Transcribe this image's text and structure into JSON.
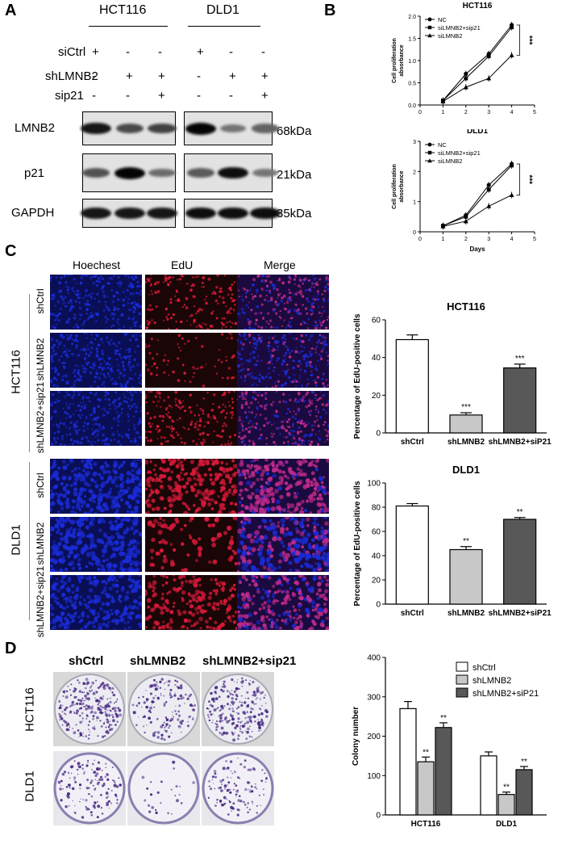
{
  "panels": {
    "A": "A",
    "B": "B",
    "C": "C",
    "D": "D"
  },
  "panel_a": {
    "cell_lines": [
      "HCT116",
      "DLD1"
    ],
    "row_labels": [
      "siCtrl",
      "shLMNB2",
      "sip21"
    ],
    "signs": {
      "siCtrl": [
        "+",
        "-",
        "-",
        "+",
        "-",
        "-"
      ],
      "shLMNB2": [
        "-",
        "+",
        "+",
        "-",
        "+",
        "+"
      ],
      "sip21": [
        "-",
        "-",
        "+",
        "-",
        "-",
        "+"
      ]
    },
    "blots": [
      {
        "protein": "LMNB2",
        "size": "68kDa",
        "intensity": [
          0.9,
          0.6,
          0.65,
          1.0,
          0.35,
          0.45
        ]
      },
      {
        "protein": "p21",
        "size": "21kDa",
        "intensity": [
          0.55,
          1.0,
          0.4,
          0.5,
          0.95,
          0.35
        ]
      },
      {
        "protein": "GAPDH",
        "size": "35kDa",
        "intensity": [
          0.9,
          0.9,
          0.9,
          0.95,
          0.95,
          0.95
        ]
      }
    ]
  },
  "panel_c": {
    "columns": [
      "Hoechest",
      "EdU",
      "Merge"
    ],
    "groups": [
      "HCT116",
      "DLD1"
    ],
    "rows": [
      "shCtrl",
      "shLMNB2",
      "shLMNB2+sip21",
      "shCtrl",
      "shLMNB2",
      "shLMNB2+sip21"
    ]
  },
  "panel_d": {
    "columns": [
      "shCtrl",
      "shLMNB2",
      "shLMNB2+sip21"
    ],
    "rows": [
      "HCT116",
      "DLD1"
    ]
  },
  "colors": {
    "hoechst": "#1a2bd6",
    "edu": "#d8193a",
    "merge": "#c02a8a",
    "crystal_violet": "#4b2a85",
    "bar_white": "#ffffff",
    "bar_light": "#c8c8c8",
    "bar_dark": "#585858"
  },
  "chart_data": [
    {
      "type": "line",
      "title": "HCT116",
      "xlabel": "",
      "ylabel": "Cell proliferation absorbance",
      "xlim": [
        0,
        5
      ],
      "ylim": [
        0,
        2.0
      ],
      "xticks": [
        0,
        1,
        2,
        3,
        4,
        5
      ],
      "yticks": [
        "0.0",
        "0.5",
        "1.0",
        "1.5",
        "2.0"
      ],
      "x": [
        1,
        2,
        3,
        4
      ],
      "series": [
        {
          "name": "NC",
          "marker": "circle",
          "values": [
            0.1,
            0.7,
            1.15,
            1.8
          ]
        },
        {
          "name": "siLMNB2+sip21",
          "marker": "square",
          "values": [
            0.1,
            0.6,
            1.1,
            1.75
          ]
        },
        {
          "name": "siLMNB2",
          "marker": "triangle",
          "values": [
            0.08,
            0.4,
            0.6,
            1.12
          ]
        }
      ],
      "annotation": "***",
      "legend": "top-left"
    },
    {
      "type": "line",
      "title": "DLD1",
      "xlabel": "Days",
      "ylabel": "Cell proliferation absorbance",
      "xlim": [
        0,
        5
      ],
      "ylim": [
        0,
        3
      ],
      "xticks": [
        0,
        1,
        2,
        3,
        4,
        5
      ],
      "yticks": [
        "0",
        "1",
        "2",
        "3"
      ],
      "x": [
        1,
        2,
        3,
        4
      ],
      "series": [
        {
          "name": "NC",
          "marker": "circle",
          "values": [
            0.2,
            0.55,
            1.55,
            2.25
          ]
        },
        {
          "name": "siLMNB2+sip21",
          "marker": "square",
          "values": [
            0.2,
            0.5,
            1.4,
            2.2
          ]
        },
        {
          "name": "siLMNB2",
          "marker": "triangle",
          "values": [
            0.18,
            0.35,
            0.85,
            1.22
          ]
        }
      ],
      "annotation": "***",
      "legend": "top-left"
    },
    {
      "type": "bar",
      "title": "HCT116",
      "xlabel": "",
      "ylabel": "Percentage of EdU-positive cells",
      "ylim": [
        0,
        60
      ],
      "yticks": [
        "0",
        "20",
        "40",
        "60"
      ],
      "categories": [
        "shCtrl",
        "shLMNB2",
        "shLMNB2+siP21"
      ],
      "values": [
        49.5,
        9.5,
        34.5
      ],
      "errors": [
        2.5,
        1.2,
        2.0
      ],
      "significance": [
        "",
        "***",
        "***"
      ]
    },
    {
      "type": "bar",
      "title": "DLD1",
      "xlabel": "",
      "ylabel": "Percentage of EdU-positive cells",
      "ylim": [
        0,
        100
      ],
      "yticks": [
        "0",
        "20",
        "40",
        "60",
        "80",
        "100"
      ],
      "categories": [
        "shCtrl",
        "shLMNB2",
        "shLMNB2+siP21"
      ],
      "values": [
        81,
        45,
        70
      ],
      "errors": [
        2,
        2.5,
        1.5
      ],
      "significance": [
        "",
        "**",
        "**"
      ]
    },
    {
      "type": "bar",
      "title": "",
      "xlabel": "",
      "ylabel": "Colony number",
      "ylim": [
        0,
        400
      ],
      "yticks": [
        "0",
        "100",
        "200",
        "300",
        "400"
      ],
      "categories": [
        "HCT116",
        "DLD1"
      ],
      "series": [
        {
          "name": "shCtrl",
          "values": [
            270,
            150
          ],
          "errors": [
            18,
            10
          ]
        },
        {
          "name": "shLMNB2",
          "values": [
            135,
            52
          ],
          "errors": [
            12,
            6
          ]
        },
        {
          "name": "shLMNB2+siP21",
          "values": [
            222,
            115
          ],
          "errors": [
            12,
            8
          ]
        }
      ],
      "significance": [
        [
          "",
          "**",
          "**"
        ],
        [
          "",
          "**",
          "**"
        ]
      ],
      "legend": "top-right"
    }
  ]
}
